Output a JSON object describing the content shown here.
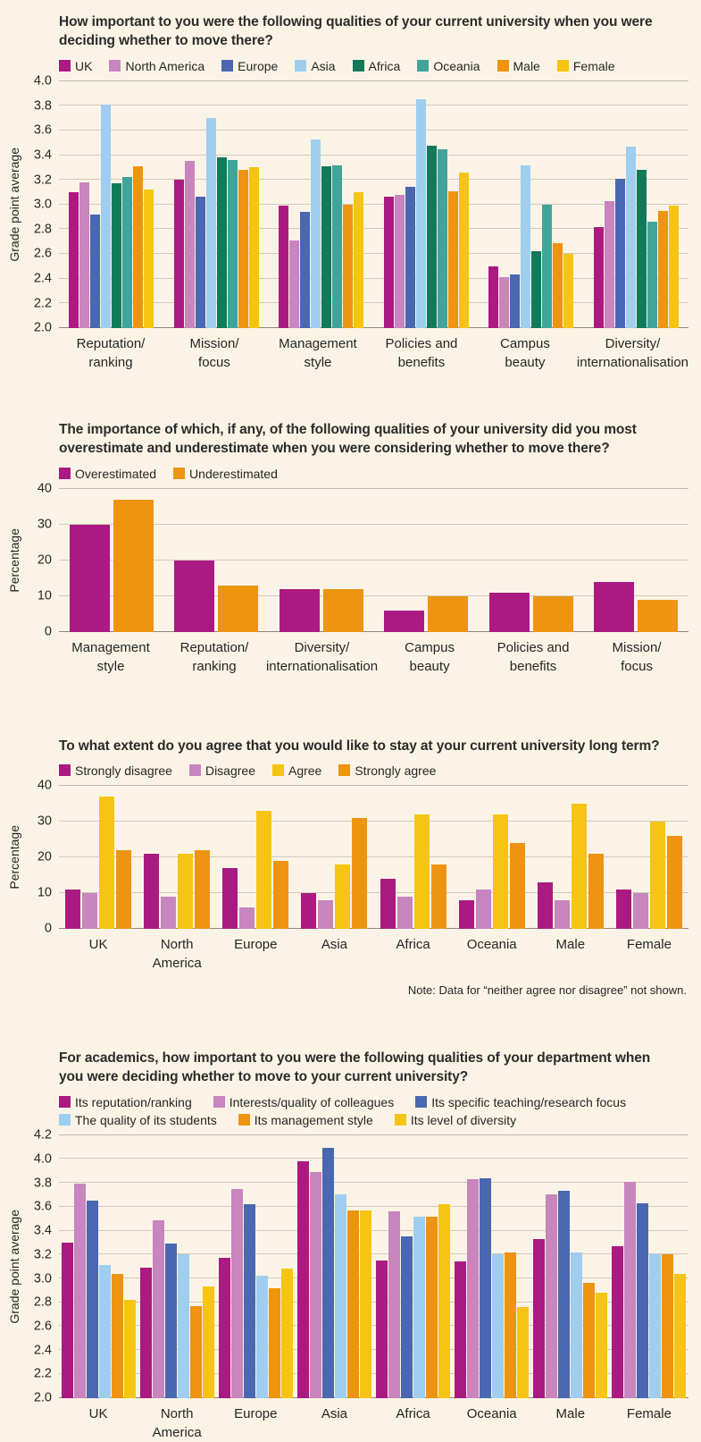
{
  "page": {
    "background": "#FBF4E6",
    "palette": {
      "magenta": "#AB1A82",
      "orchid": "#C885BE",
      "blue": "#4A67B1",
      "light_blue": "#9FCEF1",
      "green": "#13795B",
      "teal": "#41A49B",
      "orange": "#EE9411",
      "yellow": "#F6C513"
    }
  },
  "chart_data": [
    {
      "type": "bar",
      "title": "How important to you were the following qualities of your current university when you were deciding whether to move there?",
      "ylabel": "Grade point average",
      "ymin": 2.0,
      "ymax": 4.0,
      "ystep": 0.2,
      "ytick_decimals": 1,
      "grid": true,
      "legend_position": "top",
      "categories": [
        "Reputation/\nranking",
        "Mission/\nfocus",
        "Management\nstyle",
        "Policies and\nbenefits",
        "Campus\nbeauty",
        "Diversity/\ninternationalisation"
      ],
      "series": [
        {
          "name": "UK",
          "color": "#AB1A82",
          "values": [
            3.1,
            3.2,
            2.99,
            3.06,
            2.5,
            2.82
          ]
        },
        {
          "name": "North America",
          "color": "#C885BE",
          "values": [
            3.18,
            3.35,
            2.71,
            3.08,
            2.41,
            3.03
          ]
        },
        {
          "name": "Europe",
          "color": "#4A67B1",
          "values": [
            2.92,
            3.06,
            2.94,
            3.14,
            2.43,
            3.21
          ]
        },
        {
          "name": "Asia",
          "color": "#9FCEF1",
          "values": [
            3.81,
            3.7,
            3.53,
            3.85,
            3.32,
            3.47
          ]
        },
        {
          "name": "Africa",
          "color": "#13795B",
          "values": [
            3.17,
            3.38,
            3.31,
            3.48,
            2.62,
            3.28
          ]
        },
        {
          "name": "Oceania",
          "color": "#41A49B",
          "values": [
            3.22,
            3.36,
            3.32,
            3.45,
            3.0,
            2.86
          ]
        },
        {
          "name": "Male",
          "color": "#EE9411",
          "values": [
            3.31,
            3.28,
            3.0,
            3.11,
            2.69,
            2.95
          ]
        },
        {
          "name": "Female",
          "color": "#F6C513",
          "values": [
            3.12,
            3.3,
            3.1,
            3.26,
            2.6,
            2.99
          ]
        }
      ]
    },
    {
      "type": "bar",
      "title": "The importance of which, if any, of the following qualities of your university did you most overestimate and underestimate when you were considering whether to move there?",
      "ylabel": "Percentage",
      "ymin": 0,
      "ymax": 40,
      "ystep": 10,
      "ytick_decimals": 0,
      "grid": true,
      "legend_position": "top",
      "categories": [
        "Management\nstyle",
        "Reputation/\nranking",
        "Diversity/\ninternationalisation",
        "Campus\nbeauty",
        "Policies and\nbenefits",
        "Mission/\nfocus"
      ],
      "series": [
        {
          "name": "Overestimated",
          "color": "#AB1A82",
          "values": [
            30,
            20,
            12,
            6,
            11,
            14
          ]
        },
        {
          "name": "Underestimated",
          "color": "#EE9411",
          "values": [
            37,
            13,
            12,
            10,
            10,
            9
          ]
        }
      ]
    },
    {
      "type": "bar",
      "title": "To what extent do you agree that you would like to stay at your current university long term?",
      "ylabel": "Percentage",
      "ymin": 0,
      "ymax": 40,
      "ystep": 10,
      "ytick_decimals": 0,
      "grid": true,
      "legend_position": "top",
      "categories": [
        "UK",
        "North America",
        "Europe",
        "Asia",
        "Africa",
        "Oceania",
        "Male",
        "Female"
      ],
      "series": [
        {
          "name": "Strongly disagree",
          "color": "#AB1A82",
          "values": [
            11,
            21,
            17,
            10,
            14,
            8,
            13,
            11
          ]
        },
        {
          "name": "Disagree",
          "color": "#C885BE",
          "values": [
            10,
            9,
            6,
            8,
            9,
            11,
            8,
            10
          ]
        },
        {
          "name": "Agree",
          "color": "#F6C513",
          "values": [
            37,
            21,
            33,
            18,
            32,
            32,
            35,
            30
          ]
        },
        {
          "name": "Strongly agree",
          "color": "#EE9411",
          "values": [
            22,
            22,
            19,
            31,
            18,
            24,
            21,
            26
          ]
        }
      ],
      "note": "Note: Data for “neither agree nor disagree” not shown."
    },
    {
      "type": "bar",
      "title": "For academics, how important to you were the following qualities of your department when you were deciding whether to move to your current university?",
      "ylabel": "Grade point average",
      "ymin": 2.0,
      "ymax": 4.2,
      "ystep": 0.2,
      "ytick_decimals": 1,
      "grid": true,
      "legend_position": "top",
      "categories": [
        "UK",
        "North America",
        "Europe",
        "Asia",
        "Africa",
        "Oceania",
        "Male",
        "Female"
      ],
      "series": [
        {
          "name": "Its reputation/ranking",
          "color": "#AB1A82",
          "values": [
            3.3,
            3.09,
            3.17,
            3.98,
            3.15,
            3.14,
            3.33,
            3.27
          ]
        },
        {
          "name": "Interests/quality of colleagues",
          "color": "#C885BE",
          "values": [
            3.79,
            3.49,
            3.75,
            3.89,
            3.56,
            3.83,
            3.7,
            3.81
          ]
        },
        {
          "name": "Its specific teaching/research focus",
          "color": "#4A67B1",
          "values": [
            3.65,
            3.29,
            3.62,
            4.09,
            3.35,
            3.84,
            3.73,
            3.63
          ]
        },
        {
          "name": "The quality of its students",
          "color": "#9FCEF1",
          "values": [
            3.11,
            3.2,
            3.02,
            3.7,
            3.52,
            3.2,
            3.22,
            3.2
          ]
        },
        {
          "name": "Its management style",
          "color": "#EE9411",
          "values": [
            3.04,
            2.77,
            2.92,
            3.57,
            3.52,
            3.22,
            2.96,
            3.2
          ]
        },
        {
          "name": "Its level of diversity",
          "color": "#F6C513",
          "values": [
            2.82,
            2.93,
            3.08,
            3.57,
            3.62,
            2.76,
            2.88,
            3.04
          ]
        }
      ]
    }
  ]
}
